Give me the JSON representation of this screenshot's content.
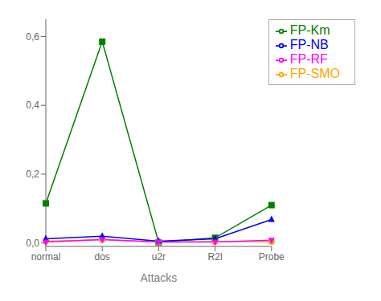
{
  "chart_data": {
    "type": "line",
    "xlabel": "Attacks",
    "categories": [
      "normal",
      "dos",
      "u2r",
      "R2l",
      "Probe"
    ],
    "series": [
      {
        "name": "FP-Km",
        "color": "#008000",
        "marker": "square",
        "values": [
          0.115,
          0.585,
          0.002,
          0.015,
          0.11
        ]
      },
      {
        "name": "FP-SMO",
        "color": "#FFA500",
        "marker": "circle",
        "values": [
          0.005,
          0.01,
          0.003,
          0.004,
          0.004
        ]
      },
      {
        "name": "FP-NB",
        "color": "#0000FF",
        "marker": "triangle-up",
        "values": [
          0.012,
          0.02,
          0.005,
          0.012,
          0.068
        ]
      },
      {
        "name": "FP-RF",
        "color": "#FF00FF",
        "marker": "triangle-down",
        "values": [
          0.003,
          0.01,
          0.003,
          0.003,
          0.008
        ]
      }
    ],
    "ylim": [
      -0.01,
      0.65
    ],
    "yticks": [
      {
        "value": 0.0,
        "label": "0,0"
      },
      {
        "value": 0.2,
        "label": "0,2"
      },
      {
        "value": 0.4,
        "label": "0,4"
      },
      {
        "value": 0.6,
        "label": "0,6"
      }
    ],
    "grid": false,
    "legend": "upper right"
  }
}
